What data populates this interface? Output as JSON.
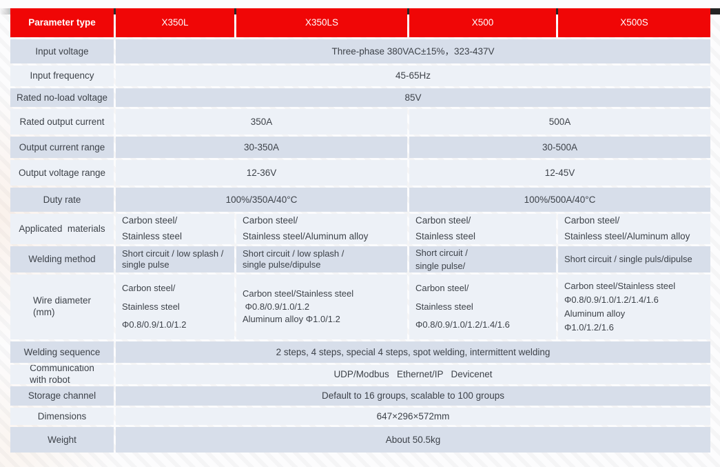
{
  "header": {
    "param_label": "Parameter type",
    "models": [
      "X350L",
      "X350LS",
      "X500",
      "X500S"
    ]
  },
  "rows": {
    "input_voltage": {
      "label": "Input voltage",
      "value": "Three-phase 380VAC±15%，323-437V"
    },
    "input_frequency": {
      "label": "Input frequency",
      "value": "45-65Hz"
    },
    "no_load_voltage": {
      "label": "Rated no-load voltage",
      "value": "85V"
    },
    "rated_output_current": {
      "label": "Rated output current",
      "v350": "350A",
      "v500": "500A"
    },
    "output_current_range": {
      "label": "Output current range",
      "v350": "30-350A",
      "v500": "30-500A"
    },
    "output_voltage_range": {
      "label": "Output voltage range",
      "v350": "12-36V",
      "v500": "12-45V"
    },
    "duty_rate": {
      "label": "Duty rate",
      "v350": "100%/350A/40°C",
      "v500": "100%/500A/40°C"
    },
    "applicated_materials": {
      "label": "Applicated  materials",
      "x350l": [
        "Carbon steel/",
        "Stainless steel"
      ],
      "x350ls": [
        "Carbon steel/",
        "Stainless steel/Aluminum alloy"
      ],
      "x500": [
        "Carbon steel/",
        "Stainless steel"
      ],
      "x500s": [
        "Carbon steel/",
        "Stainless steel/Aluminum alloy"
      ]
    },
    "welding_method": {
      "label": "Welding method",
      "x350l": [
        "Short circuit / low splash /",
        "single pulse"
      ],
      "x350ls": [
        "Short circuit / low splash /",
        "single pulse/dipulse"
      ],
      "x500": [
        "Short circuit /",
        "single pulse/"
      ],
      "x500s": "Short circuit / single puls/dipulse"
    },
    "wire_diameter": {
      "label": [
        "Wire diameter",
        "(mm)"
      ],
      "x350l": [
        "Carbon steel/",
        "Stainless steel",
        "Φ0.8/0.9/1.0/1.2"
      ],
      "x350ls": [
        "Carbon steel/Stainless steel",
        " Φ0.8/0.9/1.0/1.2",
        "Aluminum alloy Φ1.0/1.2"
      ],
      "x500": [
        "Carbon steel/",
        "Stainless steel",
        "Φ0.8/0.9/1.0/1.2/1.4/1.6"
      ],
      "x500s": [
        "Carbon steel/Stainless steel",
        "Φ0.8/0.9/1.0/1.2/1.4/1.6",
        "Aluminum alloy",
        "Φ1.0/1.2/1.6"
      ]
    },
    "welding_sequence": {
      "label": "Welding sequence",
      "value": "2 steps, 4 steps, special 4 steps, spot welding, intermittent welding"
    },
    "communication": {
      "label": [
        "Communication",
        "with robot"
      ],
      "value": "UDP/Modbus   Ethernet/IP   Devicenet"
    },
    "storage_channel": {
      "label": "Storage channel",
      "value": "Default to 16 groups, scalable to 100 groups"
    },
    "dimensions": {
      "label": "Dimensions",
      "value": "647×296×572mm"
    },
    "weight": {
      "label": "Weight",
      "value": "About 50.5kg"
    }
  },
  "colors": {
    "header_red": "#f00606",
    "row_dark": "#d7deea",
    "row_light": "#edf1f7",
    "text": "#3d4249"
  }
}
